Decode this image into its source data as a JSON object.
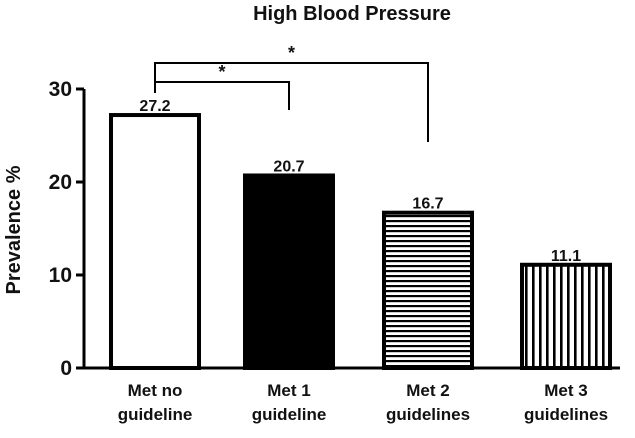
{
  "chart_data": {
    "type": "bar",
    "title": "High Blood Pressure",
    "xlabel": "",
    "ylabel": "Prevalence %",
    "ylim": [
      0,
      30
    ],
    "yticks": [
      "0",
      "10",
      "20",
      "30"
    ],
    "categories": [
      [
        "Met no",
        "guideline"
      ],
      [
        "Met 1",
        "guideline"
      ],
      [
        "Met 2",
        "guidelines"
      ],
      [
        "Met 3",
        "guidelines"
      ]
    ],
    "values": [
      27.2,
      20.7,
      16.7,
      11.1
    ],
    "value_labels": [
      "27.2",
      "20.7",
      "16.7",
      "11.1"
    ],
    "bar_fills": [
      "white",
      "black",
      "horizontal-stripes",
      "vertical-stripes"
    ],
    "significance": [
      {
        "from": 0,
        "to": 1,
        "label": "*"
      },
      {
        "from": 0,
        "to": 2,
        "label": "*"
      }
    ],
    "grid": false,
    "legend": "none"
  }
}
